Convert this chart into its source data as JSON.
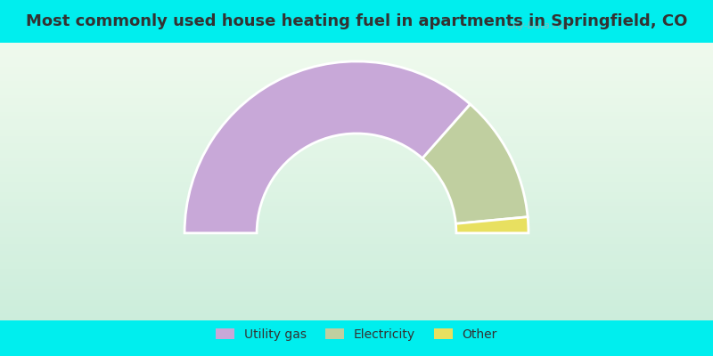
{
  "title": "Most commonly used house heating fuel in apartments in Springfield, CO",
  "title_color": "#333333",
  "title_fontsize": 13,
  "background_color": "#00EEEE",
  "slices": [
    {
      "label": "Utility gas",
      "value": 73,
      "color": "#c8a8d8"
    },
    {
      "label": "Electricity",
      "value": 24,
      "color": "#c0cfa0"
    },
    {
      "label": "Other",
      "value": 3,
      "color": "#e8e060"
    }
  ],
  "legend_fontsize": 10,
  "watermark": "City-Data.com"
}
